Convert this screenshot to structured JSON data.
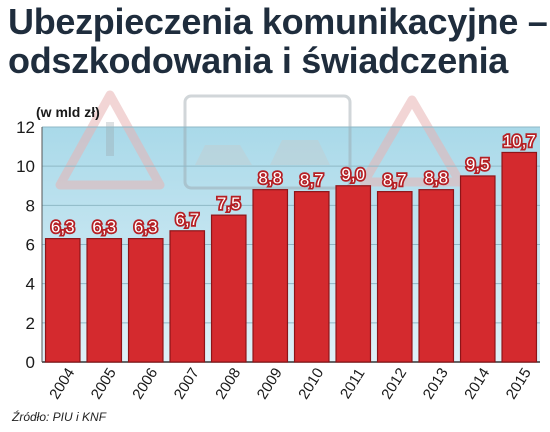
{
  "title_lines": [
    "Ubezpieczenia komunikacyjne –",
    "odszkodowania i świadczenia"
  ],
  "source": "Źródło: PIU i KNF",
  "colors": {
    "bar": "#d42a2e",
    "bar_edge": "#8e1418",
    "title": "#1f2d3d",
    "panel_top": "#a9d9e9",
    "panel_bottom": "#dff1f8"
  },
  "background_icons": [
    "warning-triangle-exclamation-icon",
    "car-crash-sign-icon",
    "skidding-car-triangle-icon"
  ],
  "chart_data": {
    "type": "bar",
    "unit_label": "(w mld zł)",
    "categories": [
      "2004",
      "2005",
      "2006",
      "2007",
      "2008",
      "2009",
      "2010",
      "2011",
      "2012",
      "2013",
      "2014",
      "2015"
    ],
    "values": [
      6.3,
      6.3,
      6.3,
      6.7,
      7.5,
      8.8,
      8.7,
      9.0,
      8.7,
      8.8,
      9.5,
      10.7
    ],
    "value_labels": [
      "6,3",
      "6,3",
      "6,3",
      "6,7",
      "7,5",
      "8,8",
      "8,7",
      "9,0",
      "8,7",
      "8,8",
      "9,5",
      "10,7"
    ],
    "yticks": [
      "0",
      "2",
      "4",
      "6",
      "8",
      "10",
      "12"
    ],
    "ylim": [
      0,
      12
    ],
    "grid": true,
    "legend": "none"
  }
}
